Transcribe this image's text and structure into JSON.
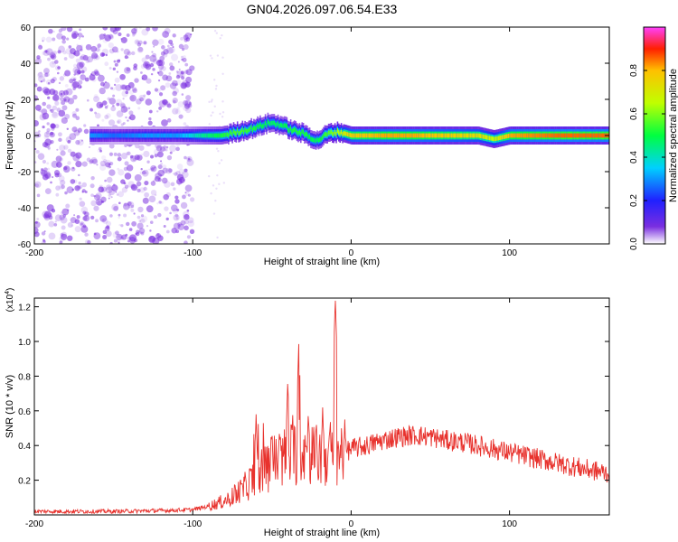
{
  "title": "GN04.2026.097.06.54.E33",
  "colors": {
    "line": "#e8322d",
    "axis": "#000000",
    "noise": "#7a2ee0"
  },
  "chart_data": [
    {
      "type": "heatmap",
      "xlabel": "Height of straight line (km)",
      "ylabel": "Frequency (Hz)",
      "xlim": [
        -200,
        163
      ],
      "ylim": [
        -60,
        60
      ],
      "xticks": [
        -200,
        -100,
        0,
        100
      ],
      "yticks": [
        60,
        40,
        20,
        0,
        -20,
        -40,
        -60
      ],
      "colorbar": {
        "label": "Normalized spectral amplitude",
        "range": [
          0,
          1
        ],
        "ticks": [
          "0.0",
          "0.2",
          "0.4",
          "0.6",
          "0.8"
        ],
        "ticks_values": [
          0,
          0.2,
          0.4,
          0.6,
          0.8
        ]
      },
      "ridge": [
        {
          "x": -165,
          "y": 0,
          "v": 0.3
        },
        {
          "x": -150,
          "y": 0,
          "v": 0.25
        },
        {
          "x": -130,
          "y": 0,
          "v": 0.3
        },
        {
          "x": -110,
          "y": 0,
          "v": 0.3
        },
        {
          "x": -95,
          "y": 0,
          "v": 0.45
        },
        {
          "x": -82,
          "y": 0,
          "v": 0.55
        },
        {
          "x": -72,
          "y": 2,
          "v": 0.6
        },
        {
          "x": -62,
          "y": 4,
          "v": 0.55
        },
        {
          "x": -52,
          "y": 7,
          "v": 0.5
        },
        {
          "x": -45,
          "y": 6,
          "v": 0.5
        },
        {
          "x": -38,
          "y": 3,
          "v": 0.55
        },
        {
          "x": -30,
          "y": 1,
          "v": 0.55
        },
        {
          "x": -22,
          "y": -3,
          "v": 0.5
        },
        {
          "x": -15,
          "y": 1,
          "v": 0.6
        },
        {
          "x": -8,
          "y": 2,
          "v": 0.7
        },
        {
          "x": 0,
          "y": 0,
          "v": 0.85
        },
        {
          "x": 20,
          "y": 0,
          "v": 0.9
        },
        {
          "x": 40,
          "y": 0,
          "v": 0.9
        },
        {
          "x": 60,
          "y": 0,
          "v": 0.85
        },
        {
          "x": 80,
          "y": 0,
          "v": 0.8
        },
        {
          "x": 90,
          "y": -2,
          "v": 0.7
        },
        {
          "x": 100,
          "y": 0,
          "v": 0.9
        },
        {
          "x": 130,
          "y": 0,
          "v": 0.95
        },
        {
          "x": 163,
          "y": 0,
          "v": 0.95
        }
      ]
    },
    {
      "type": "line",
      "xlabel": "Height of straight line (km)",
      "ylabel": "SNR (10 * v/v)",
      "multiplier": "(x10",
      "multiplier_exp": "4",
      "multiplier_close": ")",
      "xlim": [
        -200,
        163
      ],
      "ylim": [
        0,
        1.25
      ],
      "xticks": [
        -200,
        -100,
        0,
        100
      ],
      "yticks": [
        "0.2",
        "0.4",
        "0.6",
        "0.8",
        "1.0",
        "1.2"
      ],
      "yticks_values": [
        0.2,
        0.4,
        0.6,
        0.8,
        1.0,
        1.2
      ],
      "series": [
        {
          "x": [
            -200,
            -150,
            -120,
            -100,
            -90,
            -80,
            -72,
            -68,
            -65,
            -60,
            -55,
            -50,
            -45,
            -40,
            -35,
            -30,
            -25,
            -20,
            -15,
            -10,
            -5,
            0,
            10,
            20,
            30,
            40,
            50,
            60,
            70,
            80,
            90,
            100,
            110,
            120,
            130,
            140,
            150,
            163
          ],
          "y": [
            0.02,
            0.02,
            0.025,
            0.03,
            0.05,
            0.08,
            0.12,
            0.15,
            0.18,
            0.22,
            0.26,
            0.3,
            0.32,
            0.34,
            0.36,
            0.38,
            0.36,
            0.33,
            0.35,
            0.37,
            0.36,
            0.38,
            0.4,
            0.43,
            0.45,
            0.46,
            0.45,
            0.43,
            0.42,
            0.4,
            0.38,
            0.36,
            0.34,
            0.32,
            0.3,
            0.28,
            0.26,
            0.24
          ]
        }
      ],
      "peaks": [
        {
          "x": -60,
          "y": 0.58
        },
        {
          "x": -50,
          "y": 0.5
        },
        {
          "x": -40,
          "y": 0.77
        },
        {
          "x": -33,
          "y": 1.0
        },
        {
          "x": -27,
          "y": 0.6
        },
        {
          "x": -18,
          "y": 0.62
        },
        {
          "x": -10,
          "y": 1.25
        },
        {
          "x": -4,
          "y": 0.55
        }
      ]
    }
  ]
}
